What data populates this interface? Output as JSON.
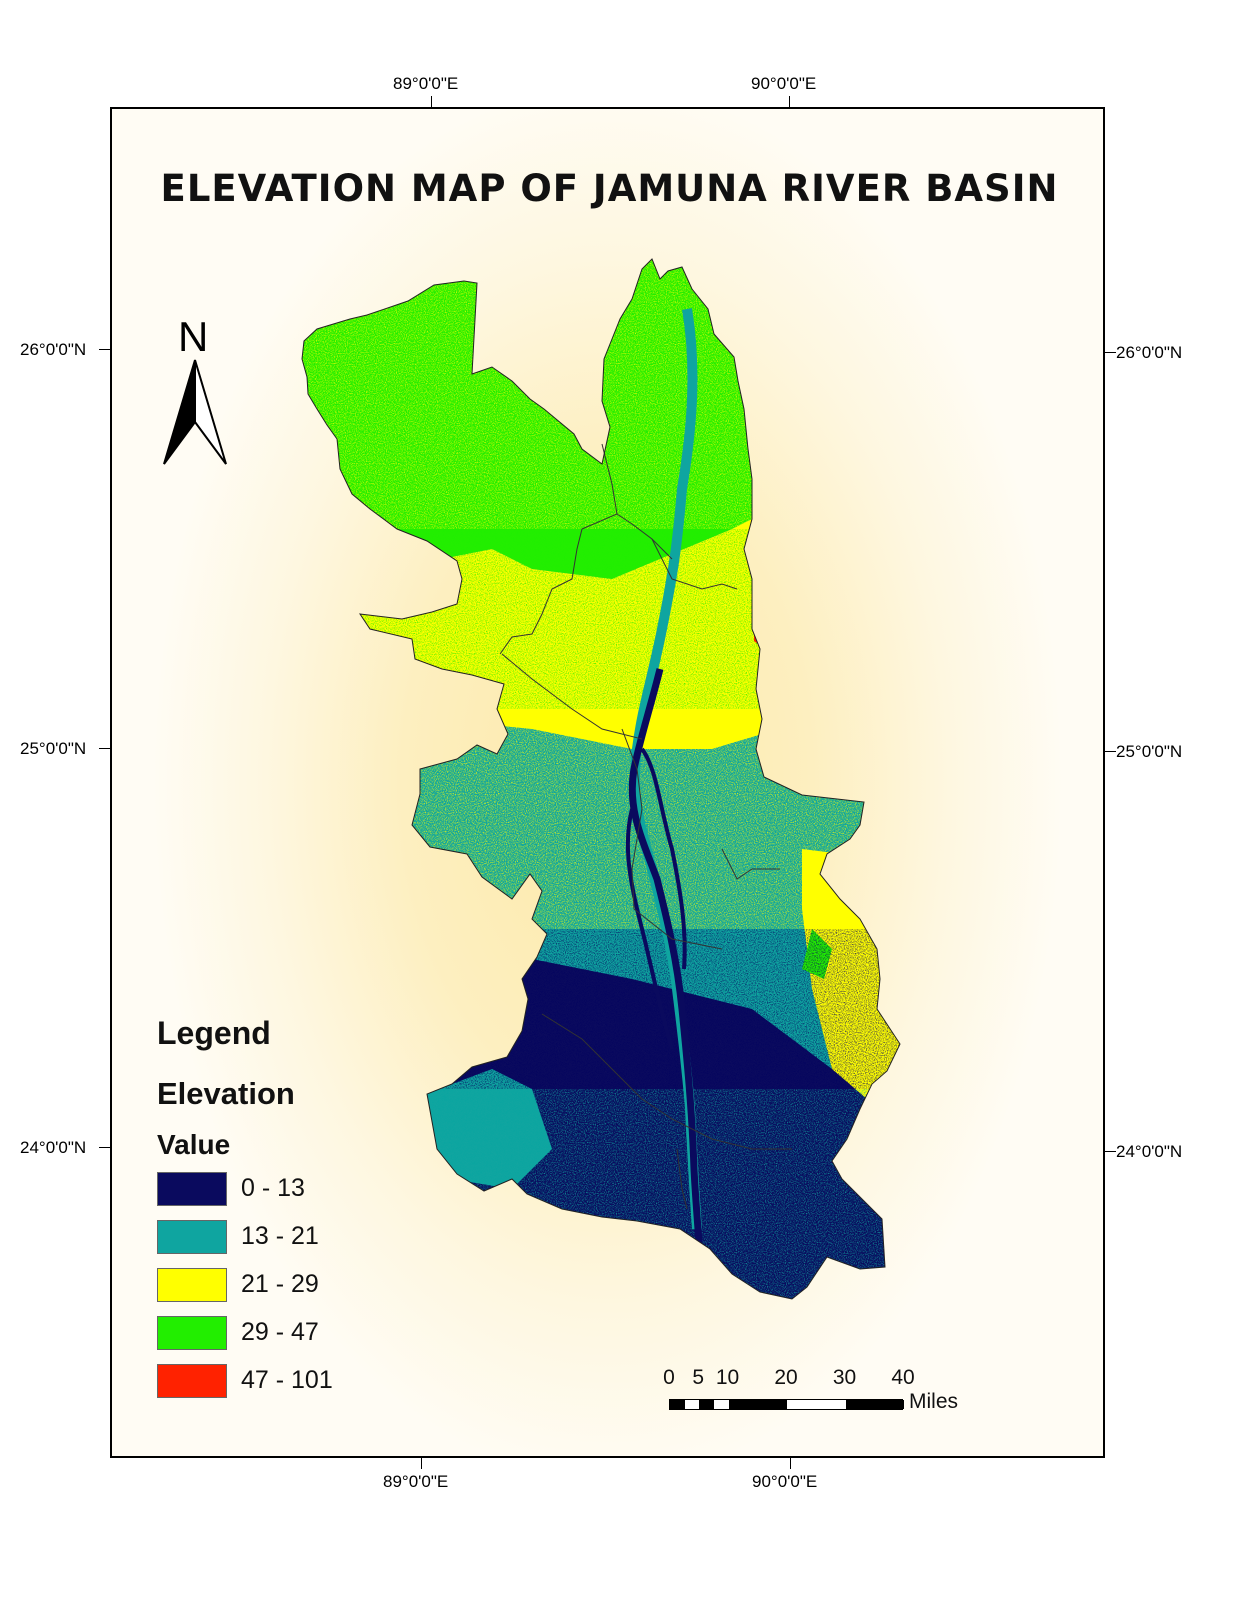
{
  "map": {
    "title": "ELEVATION MAP OF JAMUNA RIVER BASIN",
    "graticule": {
      "top_longitudes": [
        "89°0'0\"E",
        "90°0'0\"E"
      ],
      "bottom_longitudes": [
        "89°0'0\"E",
        "90°0'0\"E"
      ],
      "left_latitudes": [
        "26°0'0\"N",
        "25°0'0\"N",
        "24°0'0\"N"
      ],
      "right_latitudes": [
        "26°0'0\"N",
        "25°0'0\"N",
        "24°0'0\"N"
      ]
    },
    "north_arrow": {
      "label": "N",
      "icon": "north-arrow-icon"
    }
  },
  "legend": {
    "title": "Legend",
    "layer": "Elevation",
    "field": "Value",
    "classes": [
      {
        "label": "0 - 13",
        "color": "#0a0a5e"
      },
      {
        "label": "13 - 21",
        "color": "#0fa5a0"
      },
      {
        "label": "21 - 29",
        "color": "#ffff00"
      },
      {
        "label": "29 - 47",
        "color": "#22ee00"
      },
      {
        "label": "47 - 101",
        "color": "#ff2200"
      }
    ]
  },
  "scale_bar": {
    "ticks": [
      "0",
      "5",
      "10",
      "20",
      "30",
      "40"
    ],
    "units": "Miles"
  }
}
